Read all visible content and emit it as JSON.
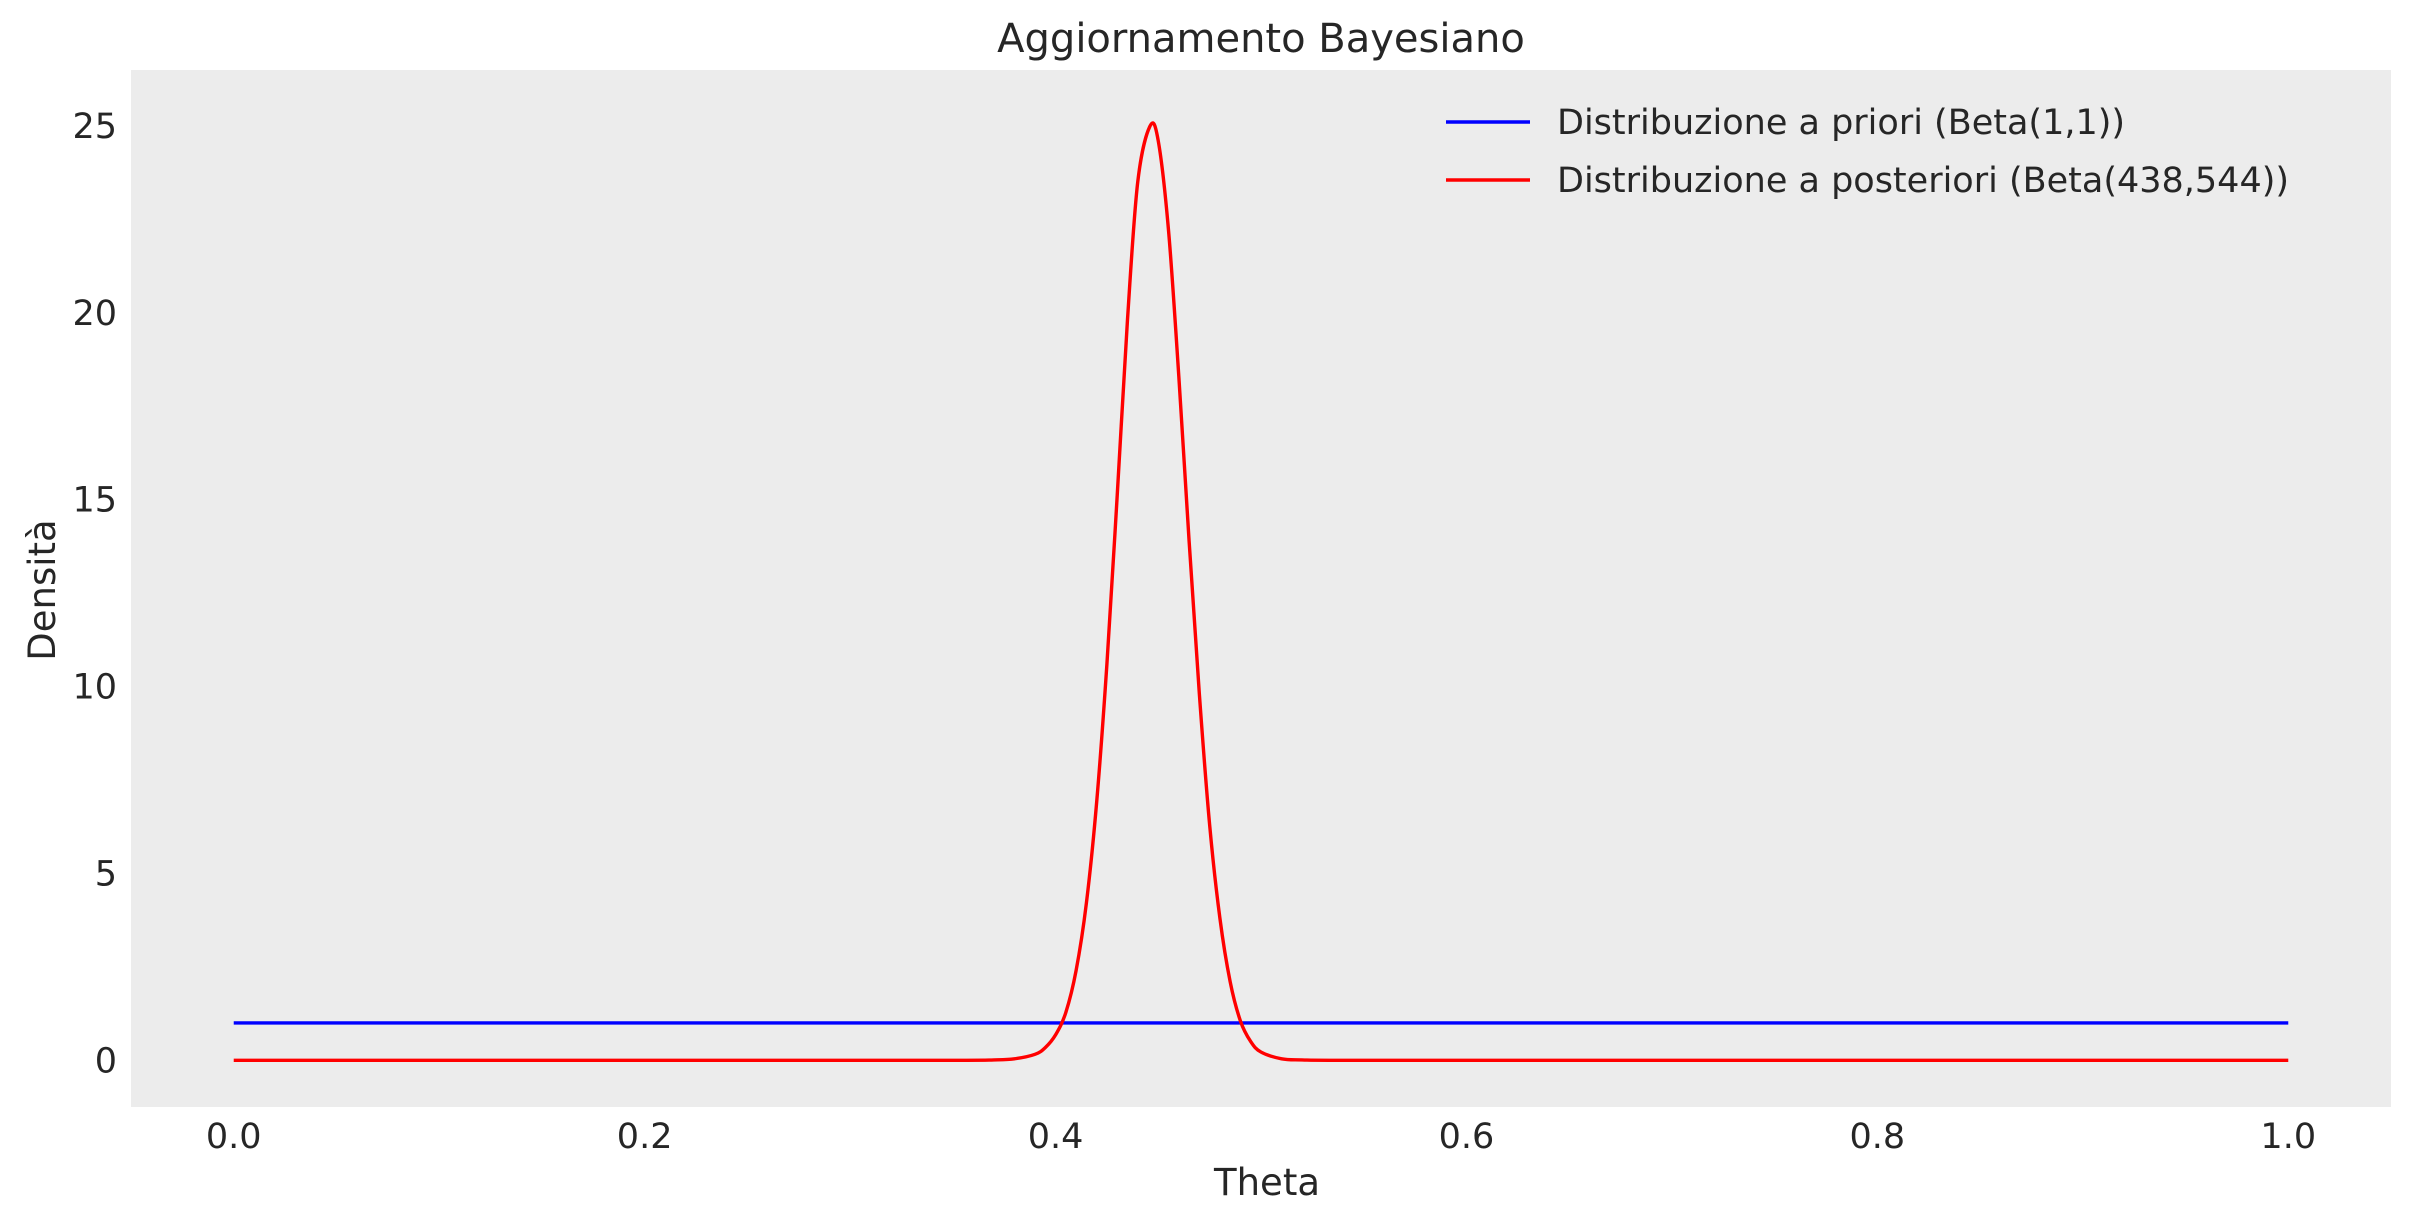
{
  "chart_data": {
    "type": "line",
    "title": "Aggiornamento Bayesiano",
    "xlabel": "Theta",
    "ylabel": "Densità",
    "xlim": [
      -0.05,
      1.05
    ],
    "ylim": [
      -1.25,
      26.5
    ],
    "xticks": [
      0.0,
      0.2,
      0.4,
      0.6,
      0.8,
      1.0
    ],
    "xtick_labels": [
      "0.0",
      "0.2",
      "0.4",
      "0.6",
      "0.8",
      "1.0"
    ],
    "yticks": [
      0,
      5,
      10,
      15,
      20,
      25
    ],
    "ytick_labels": [
      "0",
      "5",
      "10",
      "15",
      "20",
      "25"
    ],
    "grid": false,
    "legend_position": "top-right",
    "background": "#ececec",
    "series": [
      {
        "name": "Distribuzione a priori (Beta(1,1))",
        "color": "#0000ff",
        "x": [
          0.0,
          1.0
        ],
        "y": [
          1.0,
          1.0
        ]
      },
      {
        "name": "Distribuzione a posteriori (Beta(438,544))",
        "color": "#ff0000",
        "x": [
          0.0,
          0.35,
          0.37,
          0.38,
          0.39,
          0.395,
          0.4,
          0.405,
          0.41,
          0.415,
          0.42,
          0.425,
          0.43,
          0.435,
          0.44,
          0.446,
          0.45,
          0.455,
          0.46,
          0.465,
          0.47,
          0.475,
          0.48,
          0.485,
          0.49,
          0.495,
          0.5,
          0.51,
          0.52,
          0.54,
          1.0
        ],
        "y": [
          0.0,
          0.0,
          0.01,
          0.04,
          0.16,
          0.34,
          0.68,
          1.28,
          2.4,
          4.2,
          6.9,
          10.6,
          15.1,
          19.8,
          23.5,
          25.0,
          24.6,
          22.2,
          18.3,
          13.9,
          9.8,
          6.3,
          3.8,
          2.1,
          1.05,
          0.5,
          0.22,
          0.04,
          0.01,
          0.0,
          0.0
        ]
      }
    ]
  }
}
